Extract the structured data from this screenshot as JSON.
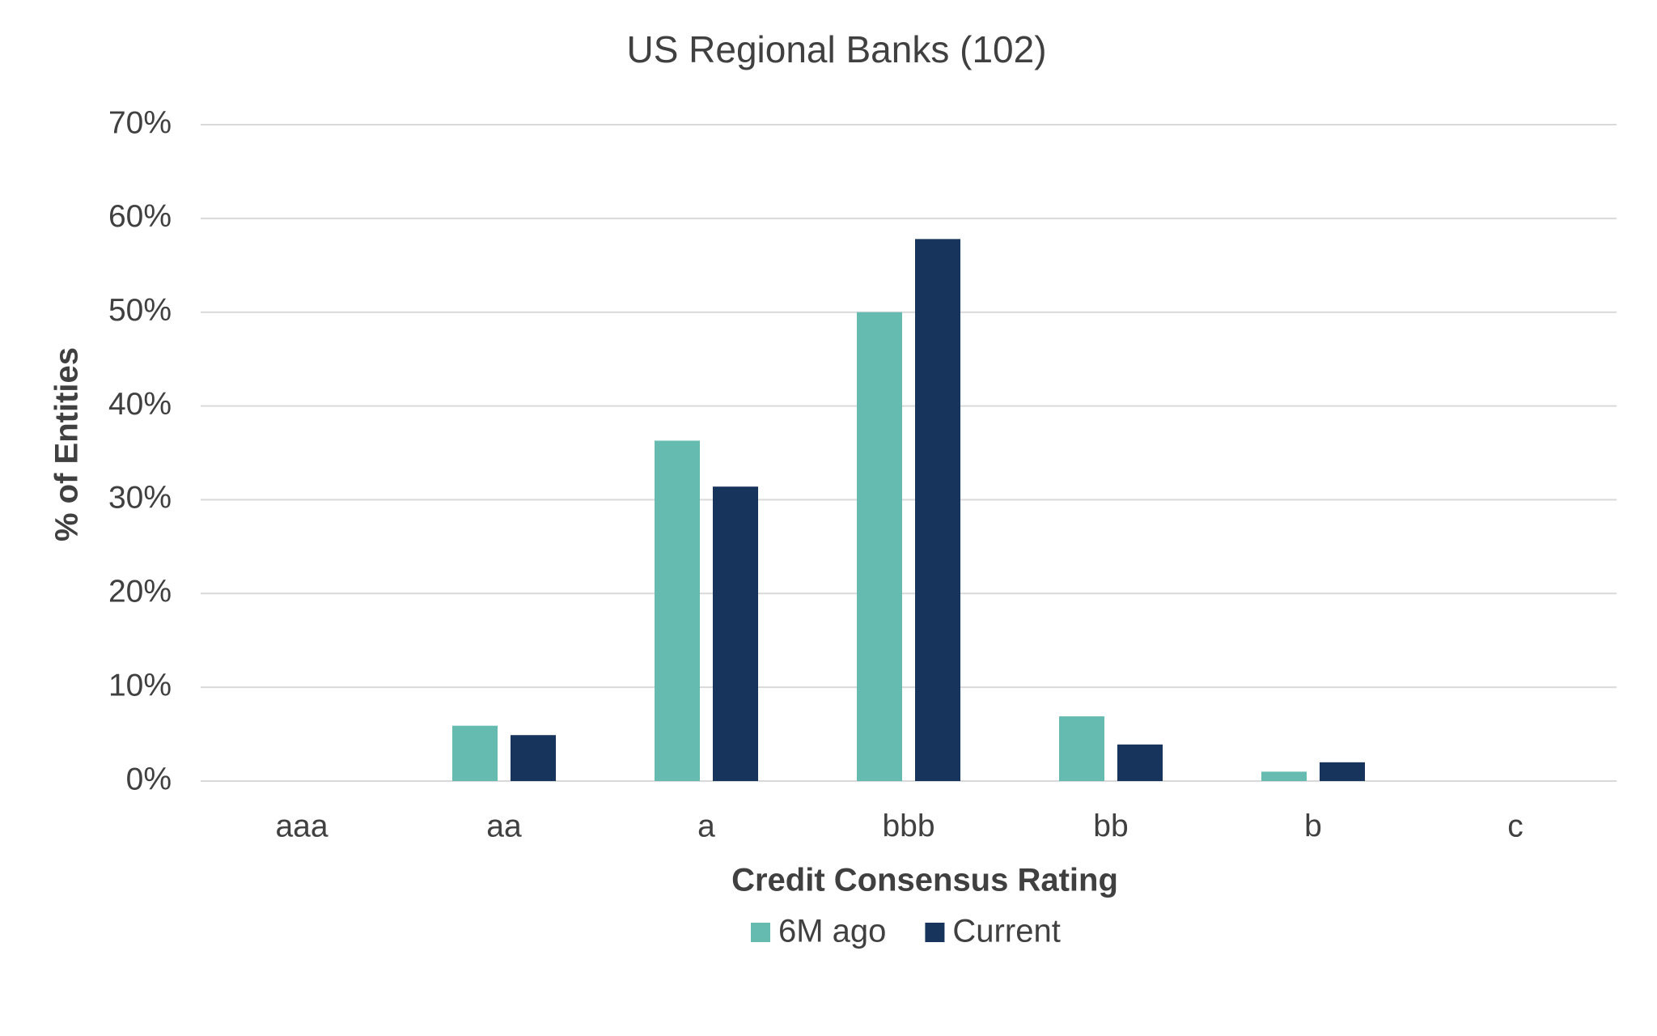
{
  "chart_data": {
    "type": "bar",
    "title": "US Regional Banks (102)",
    "x_label": "Credit Consensus Rating",
    "y_label": "% of Entities",
    "categories": [
      "aaa",
      "aa",
      "a",
      "bbb",
      "bb",
      "b",
      "c"
    ],
    "series": [
      {
        "name": "6M ago",
        "color": "#66bbb0",
        "values": [
          0,
          5.9,
          36.3,
          50,
          6.9,
          1,
          0
        ]
      },
      {
        "name": "Current",
        "color": "#17345c",
        "values": [
          0,
          4.9,
          31.4,
          57.8,
          3.9,
          2,
          0
        ]
      }
    ],
    "ylim": [
      0,
      70
    ],
    "yticks": [
      {
        "value": 0,
        "label": "0%"
      },
      {
        "value": 10,
        "label": "10%"
      },
      {
        "value": 20,
        "label": "20%"
      },
      {
        "value": 30,
        "label": "30%"
      },
      {
        "value": 40,
        "label": "40%"
      },
      {
        "value": 50,
        "label": "50%"
      },
      {
        "value": 60,
        "label": "60%"
      },
      {
        "value": 70,
        "label": "70%"
      }
    ],
    "grid": true,
    "legend": "bottom"
  }
}
